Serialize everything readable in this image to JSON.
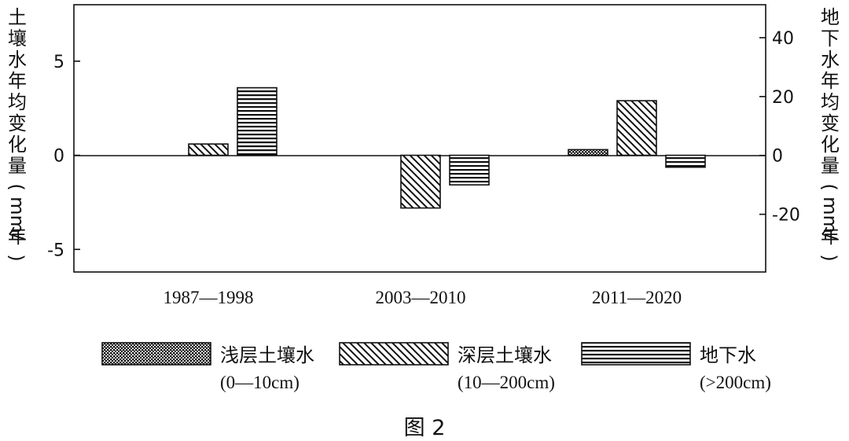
{
  "chart_data": {
    "type": "bar",
    "categories": [
      "1987—1998",
      "2003—2010",
      "2011—2020"
    ],
    "series": [
      {
        "name": "浅层土壤水",
        "range": "(0—10cm)",
        "axis": "left",
        "pattern": "dots",
        "values": [
          null,
          null,
          0.3
        ]
      },
      {
        "name": "深层土壤水",
        "range": "(10—200cm)",
        "axis": "left",
        "pattern": "diagonal",
        "values": [
          0.6,
          -2.8,
          2.9
        ]
      },
      {
        "name": "地下水",
        "range": "(>200cm)",
        "axis": "right",
        "pattern": "horizontal",
        "values": [
          23,
          -10,
          -4
        ]
      }
    ],
    "y_left": {
      "label": "土壤水年均变化量（mm/年）",
      "ticks": [
        "5",
        "0",
        "-5"
      ],
      "tick_values": [
        5,
        0,
        -5
      ],
      "ylim": [
        -6.2,
        8
      ]
    },
    "y_right": {
      "label": "地下水年均变化量（mm/年）",
      "ticks": [
        "40",
        "20",
        "0",
        "-20"
      ],
      "tick_values": [
        40,
        20,
        0,
        -20
      ],
      "ylim": [
        -39.6,
        51.2
      ]
    },
    "legend_placement": "bottom",
    "grid": false
  },
  "caption": "图 2",
  "colors": {
    "ink": "#111111",
    "background": "#ffffff"
  }
}
